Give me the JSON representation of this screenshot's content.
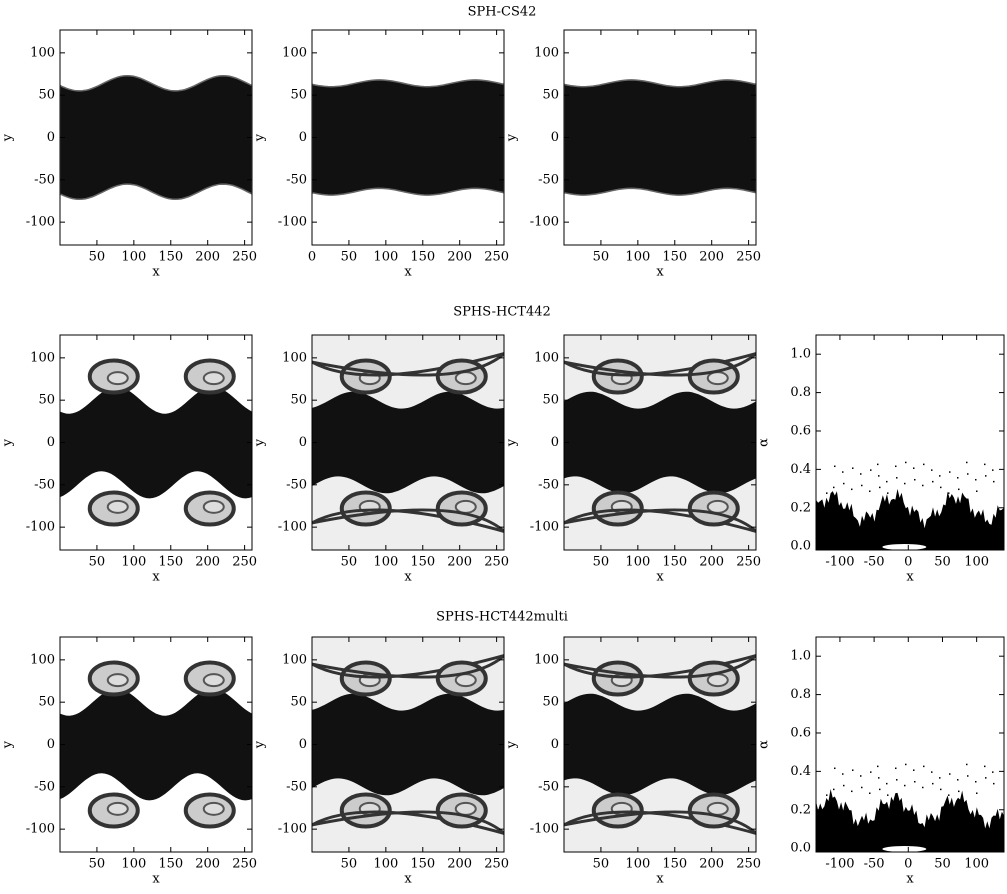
{
  "rows": [
    {
      "title": "SPH-CS42",
      "panels": [
        {
          "xlabel": "x",
          "ylabel": "y",
          "xlim": [
            0,
            260
          ],
          "ylim": [
            -127,
            127
          ],
          "xticks": [
            50,
            100,
            150,
            200,
            250
          ],
          "yticks": [
            -100,
            -50,
            0,
            50,
            100
          ]
        },
        {
          "xlabel": "x",
          "ylabel": "y",
          "xlim": [
            0,
            260
          ],
          "ylim": [
            -127,
            127
          ],
          "xticks": [
            0,
            50,
            100,
            150,
            200,
            250
          ],
          "yticks": [
            -100,
            -50,
            0,
            50,
            100
          ]
        },
        {
          "xlabel": "x",
          "ylabel": "y",
          "xlim": [
            0,
            260
          ],
          "ylim": [
            -127,
            127
          ],
          "xticks": [
            50,
            100,
            150,
            200,
            250
          ],
          "yticks": [
            -100,
            -50,
            0,
            50,
            100
          ]
        }
      ]
    },
    {
      "title": "SPHS-HCT442",
      "panels": [
        {
          "xlabel": "x",
          "ylabel": "y",
          "xlim": [
            0,
            260
          ],
          "ylim": [
            -127,
            127
          ],
          "xticks": [
            50,
            100,
            150,
            200,
            250
          ],
          "yticks": [
            -100,
            -50,
            0,
            50,
            100
          ]
        },
        {
          "xlabel": "x",
          "ylabel": "y",
          "xlim": [
            0,
            260
          ],
          "ylim": [
            -127,
            127
          ],
          "xticks": [
            50,
            100,
            150,
            200,
            250
          ],
          "yticks": [
            -100,
            -50,
            0,
            50,
            100
          ]
        },
        {
          "xlabel": "x",
          "ylabel": "y",
          "xlim": [
            0,
            260
          ],
          "ylim": [
            -127,
            127
          ],
          "xticks": [
            50,
            100,
            150,
            200,
            250
          ],
          "yticks": [
            -100,
            -50,
            0,
            50,
            100
          ]
        },
        {
          "xlabel": "x",
          "ylabel": "α",
          "xlim": [
            -135,
            140
          ],
          "ylim": [
            -0.02,
            1.1
          ],
          "xticks": [
            -100,
            -50,
            0,
            50,
            100
          ],
          "yticks": [
            {
              "value": 0,
              "label": "0.0"
            },
            {
              "value": 0.2,
              "label": "0.2"
            },
            {
              "value": 0.4,
              "label": "0.4"
            },
            {
              "value": 0.6,
              "label": "0.6"
            },
            {
              "value": 0.8,
              "label": "0.8"
            },
            {
              "value": 1,
              "label": "1.0"
            }
          ]
        }
      ]
    },
    {
      "title": "SPHS-HCT442multi",
      "panels": [
        {
          "xlabel": "x",
          "ylabel": "y",
          "xlim": [
            0,
            260
          ],
          "ylim": [
            -127,
            127
          ],
          "xticks": [
            50,
            100,
            150,
            200,
            250
          ],
          "yticks": [
            -100,
            -50,
            0,
            50,
            100
          ]
        },
        {
          "xlabel": "x",
          "ylabel": "y",
          "xlim": [
            0,
            260
          ],
          "ylim": [
            -127,
            127
          ],
          "xticks": [
            50,
            100,
            150,
            200,
            250
          ],
          "yticks": [
            -100,
            -50,
            0,
            50,
            100
          ]
        },
        {
          "xlabel": "x",
          "ylabel": "y",
          "xlim": [
            0,
            260
          ],
          "ylim": [
            -127,
            127
          ],
          "xticks": [
            50,
            100,
            150,
            200,
            250
          ],
          "yticks": [
            -100,
            -50,
            0,
            50,
            100
          ]
        },
        {
          "xlabel": "x",
          "ylabel": "α",
          "xlim": [
            -135,
            140
          ],
          "ylim": [
            -0.02,
            1.1
          ],
          "xticks": [
            -100,
            -50,
            0,
            50,
            100
          ],
          "yticks": [
            {
              "value": 0,
              "label": "0.0"
            },
            {
              "value": 0.2,
              "label": "0.2"
            },
            {
              "value": 0.4,
              "label": "0.4"
            },
            {
              "value": 0.6,
              "label": "0.6"
            },
            {
              "value": 0.8,
              "label": "0.8"
            },
            {
              "value": 1,
              "label": "1.0"
            }
          ]
        }
      ]
    }
  ]
}
